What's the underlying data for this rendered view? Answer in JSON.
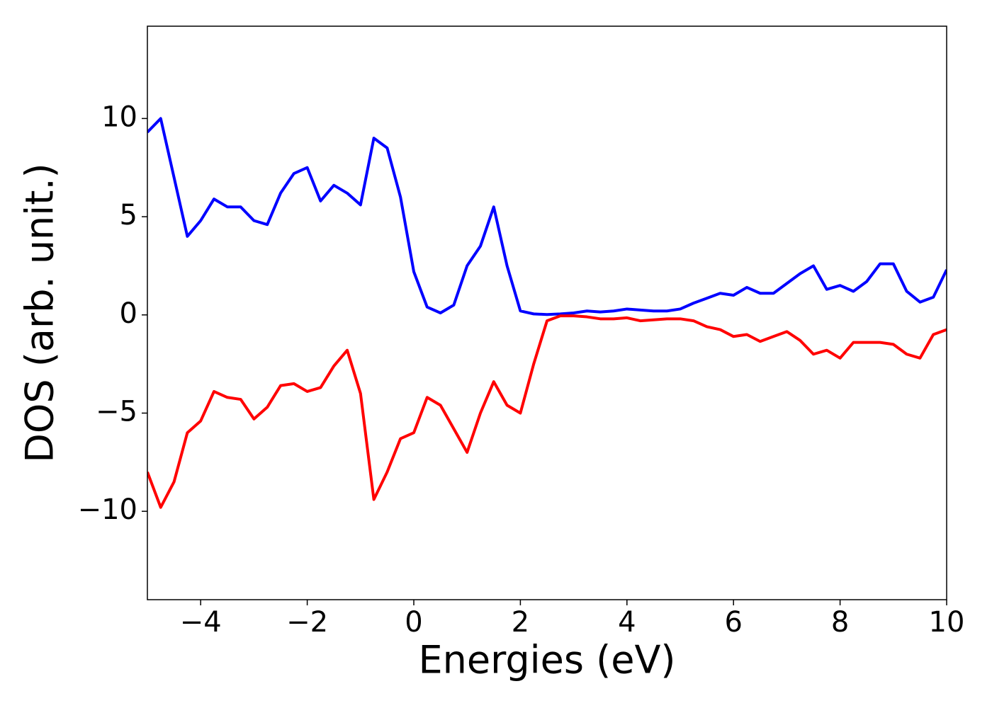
{
  "chart_data": {
    "type": "line",
    "xlabel": "Energies (eV)",
    "ylabel": "DOS (arb. unit.)",
    "x": [
      -5,
      -4.75,
      -4.5,
      -4.25,
      -4,
      -3.75,
      -3.5,
      -3.25,
      -3,
      -2.75,
      -2.5,
      -2.25,
      -2,
      -1.75,
      -1.5,
      -1.25,
      -1,
      -0.75,
      -0.5,
      -0.25,
      0,
      0.25,
      0.5,
      0.75,
      1,
      1.25,
      1.5,
      1.75,
      2,
      2.25,
      2.5,
      2.75,
      3,
      3.25,
      3.5,
      3.75,
      4,
      4.25,
      4.5,
      4.75,
      5,
      5.25,
      5.5,
      5.75,
      6,
      6.25,
      6.5,
      6.75,
      7,
      7.25,
      7.5,
      7.75,
      8,
      8.25,
      8.5,
      8.75,
      9,
      9.25,
      9.5,
      9.75,
      10
    ],
    "series": [
      {
        "color": "#0000ff",
        "values": [
          9.3,
          10.0,
          7.0,
          4.0,
          4.8,
          5.9,
          5.5,
          5.5,
          4.8,
          4.6,
          6.2,
          7.2,
          7.5,
          5.8,
          6.6,
          6.2,
          5.6,
          9.0,
          8.5,
          6.0,
          2.2,
          0.4,
          0.1,
          0.5,
          2.5,
          3.5,
          5.5,
          2.5,
          0.2,
          0.05,
          0.02,
          0.05,
          0.1,
          0.2,
          0.15,
          0.2,
          0.3,
          0.25,
          0.2,
          0.2,
          0.3,
          0.6,
          0.85,
          1.1,
          1.0,
          1.4,
          1.1,
          1.1,
          1.6,
          2.1,
          2.5,
          1.3,
          1.5,
          1.2,
          1.7,
          2.6,
          2.6,
          1.2,
          0.65,
          0.9,
          2.3
        ]
      },
      {
        "color": "#ff0000",
        "values": [
          -8.0,
          -9.8,
          -8.5,
          -6.0,
          -5.4,
          -3.9,
          -4.2,
          -4.3,
          -5.3,
          -4.7,
          -3.6,
          -3.5,
          -3.9,
          -3.7,
          -2.6,
          -1.8,
          -4.0,
          -9.4,
          -8.0,
          -6.3,
          -6.0,
          -4.2,
          -4.6,
          -5.8,
          -7.0,
          -5.0,
          -3.4,
          -4.6,
          -5.0,
          -2.5,
          -0.3,
          -0.05,
          -0.05,
          -0.1,
          -0.2,
          -0.2,
          -0.15,
          -0.3,
          -0.25,
          -0.2,
          -0.2,
          -0.3,
          -0.6,
          -0.75,
          -1.1,
          -1.0,
          -1.35,
          -1.1,
          -0.85,
          -1.3,
          -2.0,
          -1.8,
          -2.2,
          -1.4,
          -1.4,
          -1.4,
          -1.5,
          -2.0,
          -2.2,
          -1.0,
          -0.75
        ]
      }
    ],
    "xlim": [
      -5,
      10
    ],
    "ylim": [
      -14.5,
      14.7
    ],
    "xticks": [
      {
        "value": -4,
        "label": "−4"
      },
      {
        "value": -2,
        "label": "−2"
      },
      0,
      2,
      4,
      6,
      8,
      10
    ],
    "yticks": [
      {
        "value": -10,
        "label": "−10"
      },
      {
        "value": -5,
        "label": "−5"
      },
      0,
      5,
      10
    ],
    "grid": false
  }
}
